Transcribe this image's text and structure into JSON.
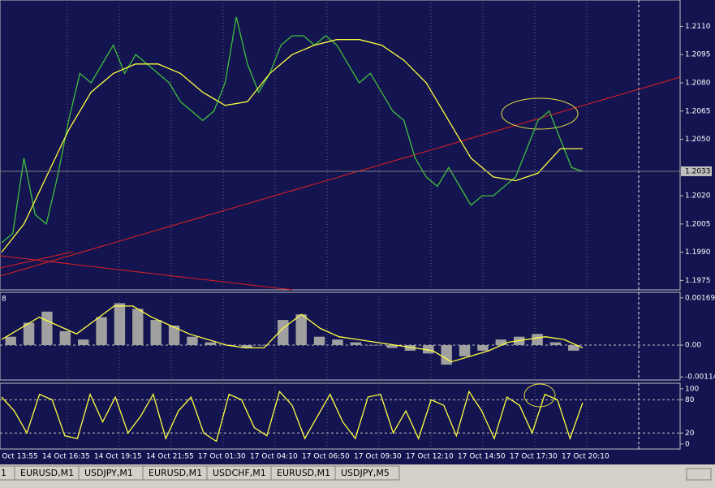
{
  "chart_data": [
    {
      "type": "line",
      "ylim": [
        1.197,
        1.2124
      ],
      "yticks": [
        {
          "value": 1.211,
          "label": "1.2110"
        },
        {
          "value": 1.2095,
          "label": "1.2095"
        },
        {
          "value": 1.208,
          "label": "1.2080"
        },
        {
          "value": 1.2065,
          "label": "1.2065"
        },
        {
          "value": 1.205,
          "label": "1.2050"
        },
        {
          "value": 1.202,
          "label": "1.2020"
        },
        {
          "value": 1.2005,
          "label": "1.2005"
        },
        {
          "value": 1.199,
          "label": "1.1990"
        },
        {
          "value": 1.1975,
          "label": "1.1975"
        }
      ],
      "current": {
        "value": 1.2033,
        "label": "1.2033"
      },
      "series": [
        {
          "color": "#3fbf3f",
          "values": [
            1.1995,
            1.2,
            1.204,
            1.201,
            1.2005,
            1.203,
            1.206,
            1.2085,
            1.208,
            1.209,
            1.21,
            1.2085,
            1.2095,
            1.209,
            1.2085,
            1.208,
            1.207,
            1.2065,
            1.206,
            1.2065,
            1.208,
            1.2115,
            1.209,
            1.2075,
            1.2085,
            1.21,
            1.2105,
            1.2105,
            1.21,
            1.2105,
            1.21,
            1.209,
            1.208,
            1.2085,
            1.2075,
            1.2065,
            1.206,
            1.204,
            1.203,
            1.2025,
            1.2035,
            1.2025,
            1.2015,
            1.202,
            1.202,
            1.2025,
            1.203,
            1.2045,
            1.206,
            1.2065,
            1.205,
            1.2035,
            1.2033
          ]
        },
        {
          "color": "#ffff40",
          "values": [
            1.199,
            1.2005,
            1.203,
            1.2055,
            1.2075,
            1.2085,
            1.209,
            1.209,
            1.2085,
            1.2075,
            1.2068,
            1.207,
            1.2085,
            1.2095,
            1.21,
            1.2103,
            1.2103,
            1.21,
            1.2092,
            1.208,
            1.206,
            1.204,
            1.203,
            1.2028,
            1.2032,
            1.2045,
            1.2045
          ]
        }
      ]
    },
    {
      "type": "macd",
      "label": "8",
      "ylim": [
        -0.00125,
        0.00189
      ],
      "yticks": [
        {
          "value": 0.00169,
          "label": "0.00169"
        },
        {
          "value": 0,
          "label": "0.00"
        },
        {
          "value": -0.00114,
          "label": "-0.00114"
        }
      ],
      "color": "#a0a0a0",
      "values": [
        0.0003,
        0.0008,
        0.0012,
        0.0005,
        0.0002,
        0.001,
        0.0015,
        0.0013,
        0.0009,
        0.0007,
        0.0003,
        0.0001,
        0.0,
        -0.0001,
        0.0,
        0.0009,
        0.0011,
        0.0003,
        0.0002,
        0.0001,
        0.0,
        -0.0001,
        -0.0002,
        -0.0003,
        -0.0007,
        -0.0004,
        -0.0002,
        0.0002,
        0.0003,
        0.0004,
        0.0001,
        -0.0002
      ],
      "signal": {
        "color": "#ffff40",
        "values": [
          0.0002,
          0.0006,
          0.001,
          0.0007,
          0.0004,
          0.0009,
          0.0014,
          0.0014,
          0.001,
          0.0007,
          0.0004,
          0.0002,
          0.0,
          -0.0001,
          -0.0001,
          0.0006,
          0.0011,
          0.0006,
          0.0003,
          0.0002,
          0.0001,
          0.0,
          -0.0001,
          -0.0002,
          -0.0006,
          -0.0004,
          -0.0002,
          0.0001,
          0.0002,
          0.0003,
          0.0002,
          -0.0001
        ]
      }
    },
    {
      "type": "line",
      "ylim": [
        -9,
        110
      ],
      "yticks": [
        0,
        20,
        80,
        100
      ],
      "grid_ticks": [
        20,
        80
      ],
      "series": [
        {
          "color": "#ffff40",
          "values": [
            85,
            60,
            20,
            90,
            80,
            15,
            10,
            90,
            40,
            85,
            20,
            50,
            90,
            10,
            60,
            85,
            20,
            5,
            90,
            80,
            30,
            15,
            95,
            70,
            10,
            50,
            90,
            40,
            10,
            85,
            90,
            20,
            60,
            10,
            80,
            70,
            15,
            95,
            60,
            10,
            85,
            70,
            20,
            90,
            80,
            10,
            75
          ]
        }
      ]
    }
  ],
  "time_axis": {
    "labels": [
      "14 Oct 13:55",
      "14 Oct 16:35",
      "14 Oct 19:15",
      "14 Oct 21:55",
      "17 Oct 01:30",
      "17 Oct 04:10",
      "17 Oct 06:50",
      "17 Oct 09:30",
      "17 Oct 12:10",
      "17 Oct 14:50",
      "17 Oct 17:30",
      "17 Oct 20:10"
    ]
  },
  "tabs": [
    "1",
    "EURUSD,M1",
    "USDJPY,M1",
    "EURUSD,M1",
    "USDCHF,M1",
    "EURUSD,M1",
    "USDJPY,M5"
  ]
}
